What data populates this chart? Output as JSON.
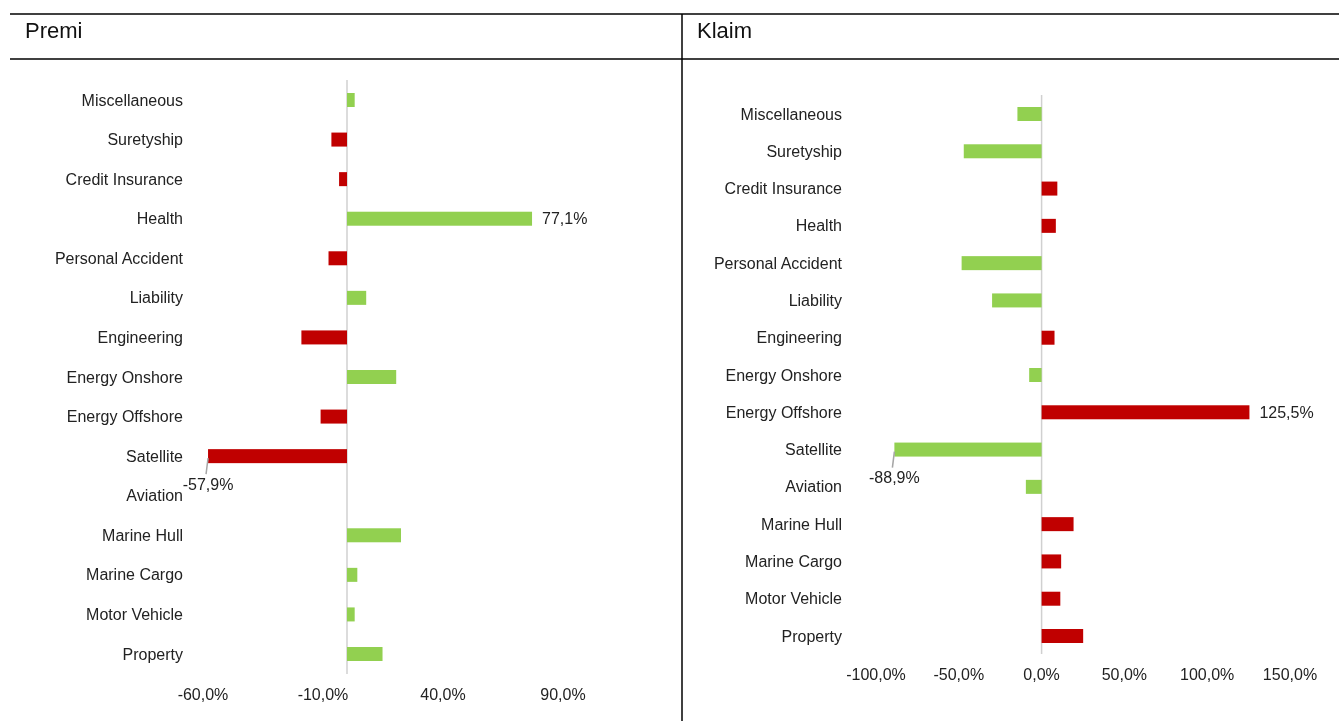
{
  "chart_data": [
    {
      "type": "bar",
      "orientation": "horizontal",
      "title": "Premi",
      "categories": [
        "Miscellaneous",
        "Suretyship",
        "Credit Insurance",
        "Health",
        "Personal Accident",
        "Liability",
        "Engineering",
        "Energy Onshore",
        "Energy Offshore",
        "Satellite",
        "Aviation",
        "Marine Hull",
        "Marine Cargo",
        "Motor Vehicle",
        "Property"
      ],
      "values": [
        3.2,
        -6.5,
        -3.3,
        77.1,
        -7.7,
        8.0,
        -19.0,
        20.5,
        -11.0,
        -57.9,
        0,
        22.5,
        4.3,
        3.2,
        14.8
      ],
      "colors": [
        "#92d050",
        "#c00000",
        "#c00000",
        "#92d050",
        "#c00000",
        "#92d050",
        "#c00000",
        "#92d050",
        "#c00000",
        "#c00000",
        "#92d050",
        "#92d050",
        "#92d050",
        "#92d050",
        "#92d050"
      ],
      "value_labels": [
        null,
        null,
        null,
        "77,1%",
        null,
        null,
        null,
        null,
        null,
        "-57,9%",
        null,
        null,
        null,
        null,
        null
      ],
      "xlim": [
        -60,
        90
      ],
      "xticks": [
        {
          "value": -60,
          "label": "-60,0%"
        },
        {
          "value": -10,
          "label": "-10,0%"
        },
        {
          "value": 40,
          "label": "40,0%"
        },
        {
          "value": 90,
          "label": "90,0%"
        }
      ]
    },
    {
      "type": "bar",
      "orientation": "horizontal",
      "title": "Klaim",
      "categories": [
        "Miscellaneous",
        "Suretyship",
        "Credit Insurance",
        "Health",
        "Personal Accident",
        "Liability",
        "Engineering",
        "Energy Onshore",
        "Energy Offshore",
        "Satellite",
        "Aviation",
        "Marine Hull",
        "Marine Cargo",
        "Motor Vehicle",
        "Property"
      ],
      "values": [
        -14.6,
        -47,
        9.5,
        8.6,
        -48.3,
        -29.9,
        7.8,
        -7.5,
        125.5,
        -88.9,
        -9.5,
        19.3,
        11.8,
        11.3,
        25.1
      ],
      "colors": [
        "#92d050",
        "#92d050",
        "#c00000",
        "#c00000",
        "#92d050",
        "#92d050",
        "#c00000",
        "#92d050",
        "#c00000",
        "#92d050",
        "#92d050",
        "#c00000",
        "#c00000",
        "#c00000",
        "#c00000"
      ],
      "value_labels": [
        null,
        null,
        null,
        null,
        null,
        null,
        null,
        null,
        "125,5%",
        "-88,9%",
        null,
        null,
        null,
        null,
        null
      ],
      "xlim": [
        -100,
        150
      ],
      "xticks": [
        {
          "value": -100,
          "label": "-100,0%"
        },
        {
          "value": -50,
          "label": "-50,0%"
        },
        {
          "value": 0,
          "label": "0,0%"
        },
        {
          "value": 50,
          "label": "50,0%"
        },
        {
          "value": 100,
          "label": "100,0%"
        },
        {
          "value": 150,
          "label": "150,0%"
        }
      ]
    }
  ]
}
